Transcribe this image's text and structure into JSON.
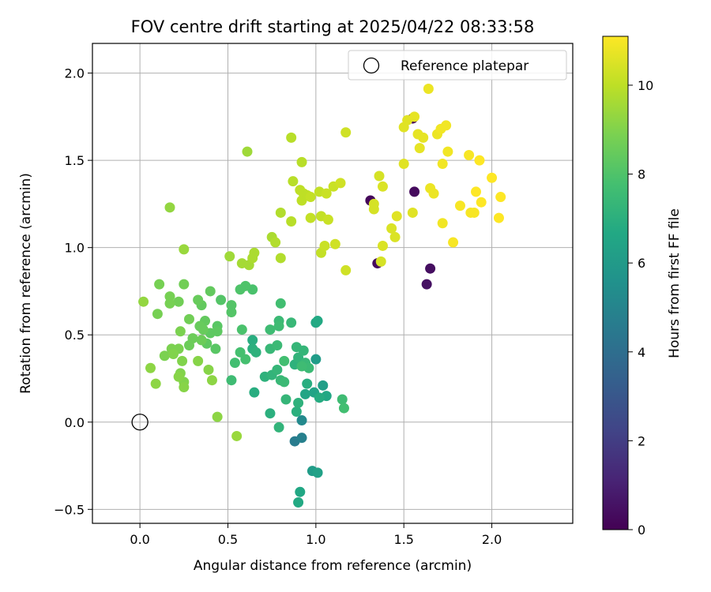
{
  "chart_data": {
    "type": "scatter",
    "title": "FOV centre drift starting at 2025/04/22 08:33:58",
    "xlabel": "Angular distance from reference (arcmin)",
    "ylabel": "Rotation from reference (arcmin)",
    "xlim": [
      -0.27,
      2.46
    ],
    "ylim": [
      -0.58,
      2.17
    ],
    "x_ticks": [
      "0.0",
      "0.5",
      "1.0",
      "1.5",
      "2.0"
    ],
    "y_ticks": [
      "−0.5",
      "0.0",
      "0.5",
      "1.0",
      "1.5",
      "2.0"
    ],
    "grid": true,
    "legend": {
      "placement": "top-right",
      "entries": [
        "Reference platepar"
      ]
    },
    "reference_point": {
      "x": 0.0,
      "y": 0.0,
      "label": "Reference platepar"
    },
    "colorbar": {
      "label": "Hours from first FF file",
      "range": [
        0,
        11.1
      ],
      "ticks": [
        "0",
        "2",
        "4",
        "6",
        "8",
        "10"
      ],
      "colormap": "viridis"
    },
    "points": [
      {
        "x": 1.55,
        "y": 1.74,
        "h": 0.2
      },
      {
        "x": 1.56,
        "y": 1.32,
        "h": 0.3
      },
      {
        "x": 1.31,
        "y": 1.27,
        "h": 0.2
      },
      {
        "x": 1.35,
        "y": 0.91,
        "h": 0.3
      },
      {
        "x": 1.65,
        "y": 0.88,
        "h": 0.4
      },
      {
        "x": 1.63,
        "y": 0.79,
        "h": 0.5
      },
      {
        "x": 0.88,
        "y": -0.11,
        "h": 4.6
      },
      {
        "x": 0.92,
        "y": -0.09,
        "h": 4.8
      },
      {
        "x": 0.92,
        "y": 0.01,
        "h": 5.2
      },
      {
        "x": 0.98,
        "y": -0.28,
        "h": 6.1
      },
      {
        "x": 1.01,
        "y": -0.29,
        "h": 6.3
      },
      {
        "x": 0.91,
        "y": -0.4,
        "h": 6.6
      },
      {
        "x": 0.9,
        "y": -0.46,
        "h": 6.7
      },
      {
        "x": 1.0,
        "y": 0.36,
        "h": 6.1
      },
      {
        "x": 1.04,
        "y": 0.21,
        "h": 6.2
      },
      {
        "x": 0.99,
        "y": 0.17,
        "h": 6.4
      },
      {
        "x": 0.94,
        "y": 0.16,
        "h": 6.5
      },
      {
        "x": 1.0,
        "y": 0.57,
        "h": 6.6
      },
      {
        "x": 1.01,
        "y": 0.58,
        "h": 6.7
      },
      {
        "x": 1.06,
        "y": 0.15,
        "h": 6.6
      },
      {
        "x": 1.02,
        "y": 0.14,
        "h": 6.8
      },
      {
        "x": 0.95,
        "y": 0.22,
        "h": 6.9
      },
      {
        "x": 0.89,
        "y": 0.06,
        "h": 7.0
      },
      {
        "x": 0.9,
        "y": 0.11,
        "h": 7.1
      },
      {
        "x": 0.74,
        "y": 0.05,
        "h": 7.0
      },
      {
        "x": 0.79,
        "y": -0.03,
        "h": 7.2
      },
      {
        "x": 0.83,
        "y": 0.13,
        "h": 7.3
      },
      {
        "x": 0.65,
        "y": 0.17,
        "h": 6.9
      },
      {
        "x": 0.64,
        "y": 0.47,
        "h": 6.9
      },
      {
        "x": 0.64,
        "y": 0.42,
        "h": 7.0
      },
      {
        "x": 0.66,
        "y": 0.4,
        "h": 7.1
      },
      {
        "x": 0.71,
        "y": 0.26,
        "h": 7.1
      },
      {
        "x": 0.75,
        "y": 0.27,
        "h": 7.2
      },
      {
        "x": 0.78,
        "y": 0.3,
        "h": 7.3
      },
      {
        "x": 0.8,
        "y": 0.24,
        "h": 7.4
      },
      {
        "x": 0.82,
        "y": 0.23,
        "h": 7.5
      },
      {
        "x": 0.88,
        "y": 0.33,
        "h": 7.1
      },
      {
        "x": 0.9,
        "y": 0.37,
        "h": 7.2
      },
      {
        "x": 0.93,
        "y": 0.41,
        "h": 7.3
      },
      {
        "x": 0.94,
        "y": 0.34,
        "h": 7.4
      },
      {
        "x": 0.96,
        "y": 0.31,
        "h": 7.5
      },
      {
        "x": 0.92,
        "y": 0.32,
        "h": 7.6
      },
      {
        "x": 0.89,
        "y": 0.43,
        "h": 7.3
      },
      {
        "x": 0.86,
        "y": 0.57,
        "h": 7.4
      },
      {
        "x": 0.79,
        "y": 0.58,
        "h": 7.5
      },
      {
        "x": 0.79,
        "y": 0.55,
        "h": 7.6
      },
      {
        "x": 0.74,
        "y": 0.53,
        "h": 7.6
      },
      {
        "x": 0.74,
        "y": 0.42,
        "h": 7.4
      },
      {
        "x": 0.78,
        "y": 0.44,
        "h": 7.5
      },
      {
        "x": 0.82,
        "y": 0.35,
        "h": 7.7
      },
      {
        "x": 0.8,
        "y": 0.68,
        "h": 7.7
      },
      {
        "x": 1.15,
        "y": 0.13,
        "h": 7.6
      },
      {
        "x": 1.16,
        "y": 0.08,
        "h": 7.7
      },
      {
        "x": 0.52,
        "y": 0.24,
        "h": 7.6
      },
      {
        "x": 0.54,
        "y": 0.34,
        "h": 7.7
      },
      {
        "x": 0.57,
        "y": 0.4,
        "h": 7.8
      },
      {
        "x": 0.6,
        "y": 0.36,
        "h": 7.8
      },
      {
        "x": 0.58,
        "y": 0.53,
        "h": 7.9
      },
      {
        "x": 0.64,
        "y": 0.76,
        "h": 7.9
      },
      {
        "x": 0.6,
        "y": 0.78,
        "h": 8.0
      },
      {
        "x": 0.57,
        "y": 0.76,
        "h": 8.0
      },
      {
        "x": 0.52,
        "y": 0.63,
        "h": 8.1
      },
      {
        "x": 0.52,
        "y": 0.67,
        "h": 8.1
      },
      {
        "x": 0.46,
        "y": 0.7,
        "h": 8.1
      },
      {
        "x": 0.44,
        "y": 0.55,
        "h": 8.2
      },
      {
        "x": 0.43,
        "y": 0.42,
        "h": 8.2
      },
      {
        "x": 0.38,
        "y": 0.45,
        "h": 8.3
      },
      {
        "x": 0.4,
        "y": 0.51,
        "h": 8.3
      },
      {
        "x": 0.44,
        "y": 0.52,
        "h": 8.3
      },
      {
        "x": 0.4,
        "y": 0.75,
        "h": 8.4
      },
      {
        "x": 0.37,
        "y": 0.58,
        "h": 8.4
      },
      {
        "x": 0.35,
        "y": 0.67,
        "h": 8.4
      },
      {
        "x": 0.33,
        "y": 0.7,
        "h": 8.5
      },
      {
        "x": 0.34,
        "y": 0.55,
        "h": 8.5
      },
      {
        "x": 0.36,
        "y": 0.53,
        "h": 8.5
      },
      {
        "x": 0.35,
        "y": 0.47,
        "h": 8.6
      },
      {
        "x": 0.3,
        "y": 0.48,
        "h": 8.6
      },
      {
        "x": 0.28,
        "y": 0.44,
        "h": 8.6
      },
      {
        "x": 0.28,
        "y": 0.59,
        "h": 8.7
      },
      {
        "x": 0.22,
        "y": 0.69,
        "h": 8.7
      },
      {
        "x": 0.25,
        "y": 0.79,
        "h": 8.7
      },
      {
        "x": 0.17,
        "y": 0.68,
        "h": 8.8
      },
      {
        "x": 0.17,
        "y": 0.72,
        "h": 8.8
      },
      {
        "x": 0.11,
        "y": 0.79,
        "h": 8.8
      },
      {
        "x": 0.1,
        "y": 0.62,
        "h": 8.8
      },
      {
        "x": 0.23,
        "y": 0.52,
        "h": 8.9
      },
      {
        "x": 0.22,
        "y": 0.42,
        "h": 8.9
      },
      {
        "x": 0.18,
        "y": 0.42,
        "h": 8.9
      },
      {
        "x": 0.14,
        "y": 0.38,
        "h": 8.9
      },
      {
        "x": 0.19,
        "y": 0.39,
        "h": 9.0
      },
      {
        "x": 0.24,
        "y": 0.35,
        "h": 9.0
      },
      {
        "x": 0.23,
        "y": 0.28,
        "h": 9.0
      },
      {
        "x": 0.25,
        "y": 0.23,
        "h": 9.0
      },
      {
        "x": 0.22,
        "y": 0.26,
        "h": 9.1
      },
      {
        "x": 0.25,
        "y": 0.2,
        "h": 9.1
      },
      {
        "x": 0.33,
        "y": 0.35,
        "h": 9.1
      },
      {
        "x": 0.39,
        "y": 0.3,
        "h": 9.1
      },
      {
        "x": 0.41,
        "y": 0.24,
        "h": 9.2
      },
      {
        "x": 0.44,
        "y": 0.03,
        "h": 9.2
      },
      {
        "x": 0.06,
        "y": 0.31,
        "h": 9.2
      },
      {
        "x": 0.09,
        "y": 0.22,
        "h": 9.2
      },
      {
        "x": 0.02,
        "y": 0.69,
        "h": 9.3
      },
      {
        "x": 0.17,
        "y": 1.23,
        "h": 9.3
      },
      {
        "x": 0.25,
        "y": 0.99,
        "h": 9.4
      },
      {
        "x": 0.55,
        "y": -0.08,
        "h": 9.4
      },
      {
        "x": 0.61,
        "y": 1.55,
        "h": 9.5
      },
      {
        "x": 0.51,
        "y": 0.95,
        "h": 9.5
      },
      {
        "x": 0.58,
        "y": 0.91,
        "h": 9.6
      },
      {
        "x": 0.62,
        "y": 0.9,
        "h": 9.6
      },
      {
        "x": 0.64,
        "y": 0.94,
        "h": 9.7
      },
      {
        "x": 0.65,
        "y": 0.97,
        "h": 9.7
      },
      {
        "x": 0.75,
        "y": 1.06,
        "h": 9.7
      },
      {
        "x": 0.77,
        "y": 1.03,
        "h": 9.8
      },
      {
        "x": 0.8,
        "y": 0.94,
        "h": 9.8
      },
      {
        "x": 0.8,
        "y": 1.2,
        "h": 9.8
      },
      {
        "x": 0.86,
        "y": 1.15,
        "h": 9.9
      },
      {
        "x": 0.86,
        "y": 1.63,
        "h": 9.9
      },
      {
        "x": 0.87,
        "y": 1.38,
        "h": 9.9
      },
      {
        "x": 0.92,
        "y": 1.49,
        "h": 9.9
      },
      {
        "x": 0.91,
        "y": 1.33,
        "h": 10.0
      },
      {
        "x": 0.92,
        "y": 1.27,
        "h": 10.0
      },
      {
        "x": 0.93,
        "y": 1.31,
        "h": 10.0
      },
      {
        "x": 0.95,
        "y": 1.3,
        "h": 10.0
      },
      {
        "x": 0.97,
        "y": 1.29,
        "h": 10.1
      },
      {
        "x": 0.97,
        "y": 1.17,
        "h": 10.1
      },
      {
        "x": 1.02,
        "y": 1.32,
        "h": 10.1
      },
      {
        "x": 1.03,
        "y": 1.18,
        "h": 10.1
      },
      {
        "x": 1.03,
        "y": 0.97,
        "h": 10.1
      },
      {
        "x": 1.05,
        "y": 1.01,
        "h": 10.2
      },
      {
        "x": 1.06,
        "y": 1.31,
        "h": 10.2
      },
      {
        "x": 1.07,
        "y": 1.16,
        "h": 10.2
      },
      {
        "x": 1.1,
        "y": 1.35,
        "h": 10.2
      },
      {
        "x": 1.11,
        "y": 1.02,
        "h": 10.3
      },
      {
        "x": 1.14,
        "y": 1.37,
        "h": 10.3
      },
      {
        "x": 1.17,
        "y": 1.66,
        "h": 10.3
      },
      {
        "x": 1.17,
        "y": 0.87,
        "h": 10.3
      },
      {
        "x": 1.33,
        "y": 1.22,
        "h": 10.4
      },
      {
        "x": 1.33,
        "y": 1.25,
        "h": 10.4
      },
      {
        "x": 1.36,
        "y": 1.41,
        "h": 10.4
      },
      {
        "x": 1.37,
        "y": 0.92,
        "h": 10.4
      },
      {
        "x": 1.38,
        "y": 1.01,
        "h": 10.5
      },
      {
        "x": 1.38,
        "y": 1.35,
        "h": 10.5
      },
      {
        "x": 1.43,
        "y": 1.11,
        "h": 10.5
      },
      {
        "x": 1.45,
        "y": 1.06,
        "h": 10.5
      },
      {
        "x": 1.46,
        "y": 1.18,
        "h": 10.6
      },
      {
        "x": 1.5,
        "y": 1.48,
        "h": 10.6
      },
      {
        "x": 1.5,
        "y": 1.69,
        "h": 10.6
      },
      {
        "x": 1.52,
        "y": 1.73,
        "h": 10.6
      },
      {
        "x": 1.55,
        "y": 1.2,
        "h": 10.6
      },
      {
        "x": 1.56,
        "y": 1.75,
        "h": 10.7
      },
      {
        "x": 1.58,
        "y": 1.65,
        "h": 10.7
      },
      {
        "x": 1.59,
        "y": 1.57,
        "h": 10.7
      },
      {
        "x": 1.61,
        "y": 1.63,
        "h": 10.7
      },
      {
        "x": 1.64,
        "y": 1.91,
        "h": 10.8
      },
      {
        "x": 1.65,
        "y": 1.34,
        "h": 10.8
      },
      {
        "x": 1.67,
        "y": 1.31,
        "h": 10.8
      },
      {
        "x": 1.69,
        "y": 1.65,
        "h": 10.8
      },
      {
        "x": 1.71,
        "y": 1.68,
        "h": 10.9
      },
      {
        "x": 1.72,
        "y": 1.48,
        "h": 10.9
      },
      {
        "x": 1.72,
        "y": 1.14,
        "h": 10.9
      },
      {
        "x": 1.74,
        "y": 1.7,
        "h": 10.9
      },
      {
        "x": 1.75,
        "y": 1.55,
        "h": 10.9
      },
      {
        "x": 1.78,
        "y": 1.03,
        "h": 11.0
      },
      {
        "x": 1.82,
        "y": 1.24,
        "h": 11.0
      },
      {
        "x": 1.87,
        "y": 1.53,
        "h": 11.0
      },
      {
        "x": 1.88,
        "y": 1.2,
        "h": 11.0
      },
      {
        "x": 1.9,
        "y": 1.2,
        "h": 11.0
      },
      {
        "x": 1.91,
        "y": 1.32,
        "h": 11.1
      },
      {
        "x": 1.93,
        "y": 1.5,
        "h": 11.1
      },
      {
        "x": 1.94,
        "y": 1.26,
        "h": 11.1
      },
      {
        "x": 2.0,
        "y": 1.4,
        "h": 11.1
      },
      {
        "x": 2.04,
        "y": 1.17,
        "h": 11.1
      },
      {
        "x": 2.05,
        "y": 1.29,
        "h": 11.1
      }
    ]
  }
}
